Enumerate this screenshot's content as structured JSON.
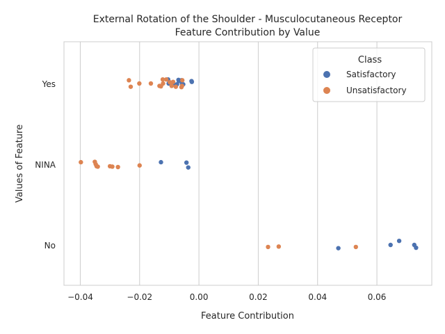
{
  "chart_data": {
    "type": "scatter",
    "title_line1": "External Rotation of the Shoulder - Musculocutaneous Receptor",
    "title_line2": "Feature Contribution by Value",
    "xlabel": "Feature Contribution",
    "ylabel": "Values of Feature",
    "xlim": [
      -0.0455,
      0.0785
    ],
    "xticks": [
      -0.04,
      -0.02,
      0.0,
      0.02,
      0.04,
      0.06
    ],
    "xtick_labels": [
      "−0.04",
      "−0.02",
      "0.00",
      "0.02",
      "0.04",
      "0.06"
    ],
    "categories": [
      "Yes",
      "NINA",
      "No"
    ],
    "grid": "vertical",
    "legend": {
      "title": "Class",
      "position": "top-right",
      "entries": [
        {
          "label": "Satisfactory",
          "color": "#4c72b0"
        },
        {
          "label": "Unsatisfactory",
          "color": "#dd8452"
        }
      ]
    },
    "series": [
      {
        "name": "Satisfactory",
        "color": "#4c72b0",
        "points": [
          {
            "cat": "Yes",
            "x": -0.0104,
            "j": 0.1
          },
          {
            "cat": "Yes",
            "x": -0.0069,
            "j": 0.09
          },
          {
            "cat": "Yes",
            "x": -0.0059,
            "j": 0.08
          },
          {
            "cat": "Yes",
            "x": -0.0068,
            "j": 0.06
          },
          {
            "cat": "Yes",
            "x": -0.0025,
            "j": 0.06
          },
          {
            "cat": "Yes",
            "x": -0.0024,
            "j": 0.04
          },
          {
            "cat": "Yes",
            "x": -0.0102,
            "j": 0.0
          },
          {
            "cat": "Yes",
            "x": -0.0085,
            "j": -0.01
          },
          {
            "cat": "Yes",
            "x": -0.0074,
            "j": -0.02
          },
          {
            "cat": "Yes",
            "x": -0.0057,
            "j": -0.01
          },
          {
            "cat": "Yes",
            "x": -0.0053,
            "j": -0.02
          },
          {
            "cat": "NINA",
            "x": -0.0128,
            "j": 0.05
          },
          {
            "cat": "NINA",
            "x": -0.0042,
            "j": 0.04
          },
          {
            "cat": "NINA",
            "x": -0.0036,
            "j": -0.08
          },
          {
            "cat": "No",
            "x": 0.0675,
            "j": 0.1
          },
          {
            "cat": "No",
            "x": 0.0646,
            "j": 0.0
          },
          {
            "cat": "No",
            "x": 0.0726,
            "j": 0.0
          },
          {
            "cat": "No",
            "x": 0.0732,
            "j": -0.07
          },
          {
            "cat": "No",
            "x": 0.047,
            "j": -0.08
          }
        ]
      },
      {
        "name": "Unsatisfactory",
        "color": "#dd8452",
        "points": [
          {
            "cat": "Yes",
            "x": -0.0236,
            "j": 0.08
          },
          {
            "cat": "Yes",
            "x": -0.0122,
            "j": 0.1
          },
          {
            "cat": "Yes",
            "x": -0.011,
            "j": 0.1
          },
          {
            "cat": "Yes",
            "x": -0.0056,
            "j": 0.08
          },
          {
            "cat": "Yes",
            "x": -0.0087,
            "j": 0.04
          },
          {
            "cat": "Yes",
            "x": -0.0098,
            "j": 0.03
          },
          {
            "cat": "Yes",
            "x": -0.0121,
            "j": 0.0
          },
          {
            "cat": "Yes",
            "x": -0.0162,
            "j": 0.0
          },
          {
            "cat": "Yes",
            "x": -0.0201,
            "j": 0.0
          },
          {
            "cat": "Yes",
            "x": -0.0133,
            "j": -0.06
          },
          {
            "cat": "Yes",
            "x": -0.0128,
            "j": -0.07
          },
          {
            "cat": "Yes",
            "x": -0.023,
            "j": -0.08
          },
          {
            "cat": "Yes",
            "x": -0.0092,
            "j": -0.06
          },
          {
            "cat": "Yes",
            "x": -0.0078,
            "j": -0.08
          },
          {
            "cat": "Yes",
            "x": -0.0057,
            "j": -0.06
          },
          {
            "cat": "Yes",
            "x": -0.0059,
            "j": -0.09
          },
          {
            "cat": "NINA",
            "x": -0.0398,
            "j": 0.05
          },
          {
            "cat": "NINA",
            "x": -0.0351,
            "j": 0.06
          },
          {
            "cat": "NINA",
            "x": -0.0348,
            "j": 0.0
          },
          {
            "cat": "NINA",
            "x": -0.0345,
            "j": -0.05
          },
          {
            "cat": "NINA",
            "x": -0.0341,
            "j": -0.06
          },
          {
            "cat": "NINA",
            "x": -0.03,
            "j": -0.05
          },
          {
            "cat": "NINA",
            "x": -0.0292,
            "j": -0.06
          },
          {
            "cat": "NINA",
            "x": -0.0273,
            "j": -0.07
          },
          {
            "cat": "NINA",
            "x": -0.02,
            "j": -0.03
          },
          {
            "cat": "No",
            "x": 0.0233,
            "j": -0.05
          },
          {
            "cat": "No",
            "x": 0.0269,
            "j": -0.04
          },
          {
            "cat": "No",
            "x": 0.0529,
            "j": -0.05
          }
        ]
      }
    ]
  }
}
